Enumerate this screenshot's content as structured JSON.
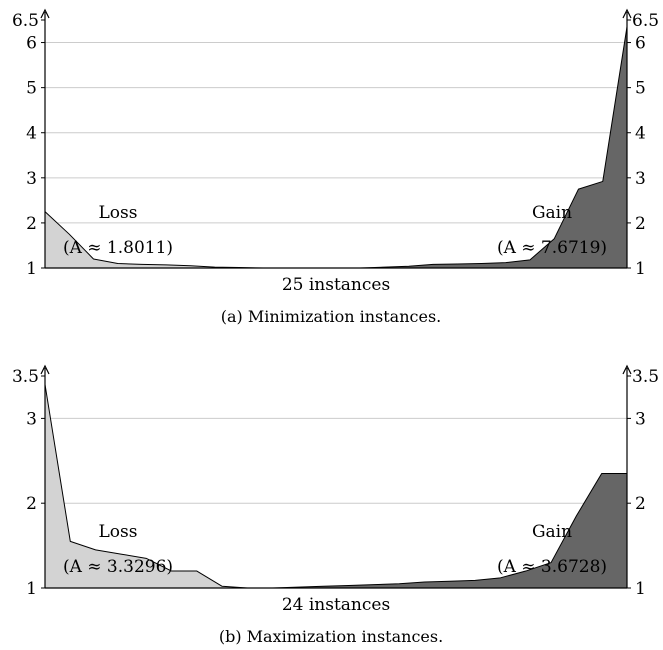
{
  "chart_data": [
    {
      "type": "area",
      "caption": "(a) Minimization instances.",
      "xlabel": "25 instances",
      "ylim": [
        1,
        6.5
      ],
      "yticks": [
        1,
        2,
        3,
        4,
        5,
        6,
        6.5
      ],
      "ytick_labels": [
        "1",
        "2",
        "3",
        "4",
        "5",
        "6",
        "6.5"
      ],
      "grid": true,
      "n_instances": 25,
      "series": [
        {
          "name": "Loss",
          "annotation": "(A ≈ 1.8011)",
          "color": "#d3d3d3",
          "values": [
            2.25,
            1.75,
            1.2,
            1.1,
            1.08,
            1.07,
            1.05,
            1.02,
            1.01,
            1.0,
            1.0,
            1.0,
            1.0,
            1.0,
            1.0,
            1.0,
            1.0,
            1.0,
            1.0,
            1.0,
            1.0,
            1.0,
            1.0,
            1.0,
            1.0
          ]
        },
        {
          "name": "Gain",
          "annotation": "(A ≈ 7.6719)",
          "color": "#666666",
          "values": [
            1.0,
            1.0,
            1.0,
            1.0,
            1.0,
            1.0,
            1.0,
            1.0,
            1.0,
            1.0,
            1.0,
            1.0,
            1.0,
            1.0,
            1.02,
            1.04,
            1.08,
            1.09,
            1.1,
            1.12,
            1.18,
            1.65,
            2.75,
            2.92,
            6.35
          ]
        }
      ]
    },
    {
      "type": "area",
      "caption": "(b) Maximization instances.",
      "xlabel": "24 instances",
      "ylim": [
        1,
        3.5
      ],
      "yticks": [
        1,
        2,
        3,
        3.5
      ],
      "ytick_labels": [
        "1",
        "2",
        "3",
        "3.5"
      ],
      "grid": true,
      "n_instances": 24,
      "series": [
        {
          "name": "Loss",
          "annotation": "(A ≈ 3.3296)",
          "color": "#d3d3d3",
          "values": [
            3.4,
            1.55,
            1.45,
            1.4,
            1.35,
            1.2,
            1.2,
            1.02,
            1.0,
            1.0,
            1.0,
            1.0,
            1.0,
            1.0,
            1.0,
            1.0,
            1.0,
            1.0,
            1.0,
            1.0,
            1.0,
            1.0,
            1.0,
            1.0
          ]
        },
        {
          "name": "Gain",
          "annotation": "(A ≈ 3.6728)",
          "color": "#666666",
          "values": [
            1.0,
            1.0,
            1.0,
            1.0,
            1.0,
            1.0,
            1.0,
            1.0,
            1.0,
            1.0,
            1.01,
            1.02,
            1.03,
            1.04,
            1.05,
            1.07,
            1.08,
            1.09,
            1.12,
            1.2,
            1.3,
            1.85,
            2.35,
            2.35
          ]
        }
      ]
    }
  ]
}
